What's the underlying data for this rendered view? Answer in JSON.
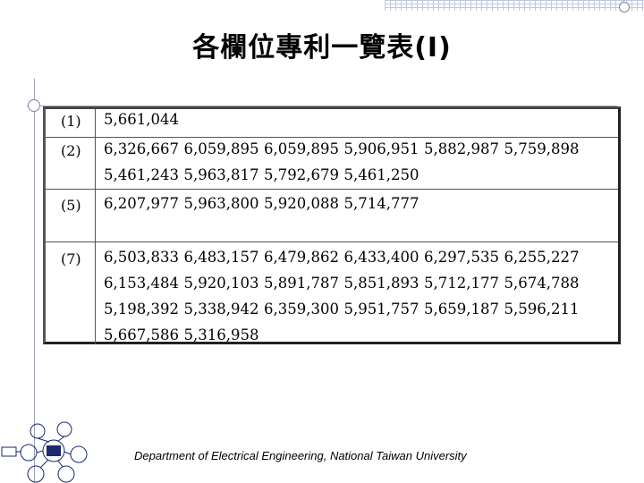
{
  "title": "各欄位專利一覽表(I)",
  "rows": [
    {
      "label": "(1)",
      "lines": [
        [
          "5,661,044"
        ]
      ]
    },
    {
      "label": "(2)",
      "lines": [
        [
          "6,326,667",
          "6,059,895",
          "6,059,895",
          "5,906,951",
          "5,882,987",
          "5,759,898"
        ],
        [
          "5,461,243",
          "5,963,817",
          "5,792,679",
          "5,461,250"
        ]
      ]
    },
    {
      "label": "(5)",
      "lines": [
        [
          "6,207,977",
          "5,963,800",
          "5,920,088",
          "5,714,777"
        ]
      ]
    },
    {
      "label": "(7)",
      "lines": [
        [
          "6,503,833",
          "6,483,157",
          "6,479,862",
          "6,433,400",
          "6,297,535",
          "6,255,227"
        ],
        [
          "6,153,484",
          "5,920,103",
          "5,891,787",
          "5,851,893",
          "5,712,177",
          "5,674,788"
        ],
        [
          "5,198,392",
          "5,338,942",
          "6,359,300",
          "5,951,757",
          "5,659,187",
          "5,596,211"
        ],
        [
          "5,667,586",
          "5,316,958"
        ]
      ]
    }
  ],
  "footer": "Department of Electrical Engineering, National Taiwan University",
  "logo_icon": "department-logo-icon"
}
